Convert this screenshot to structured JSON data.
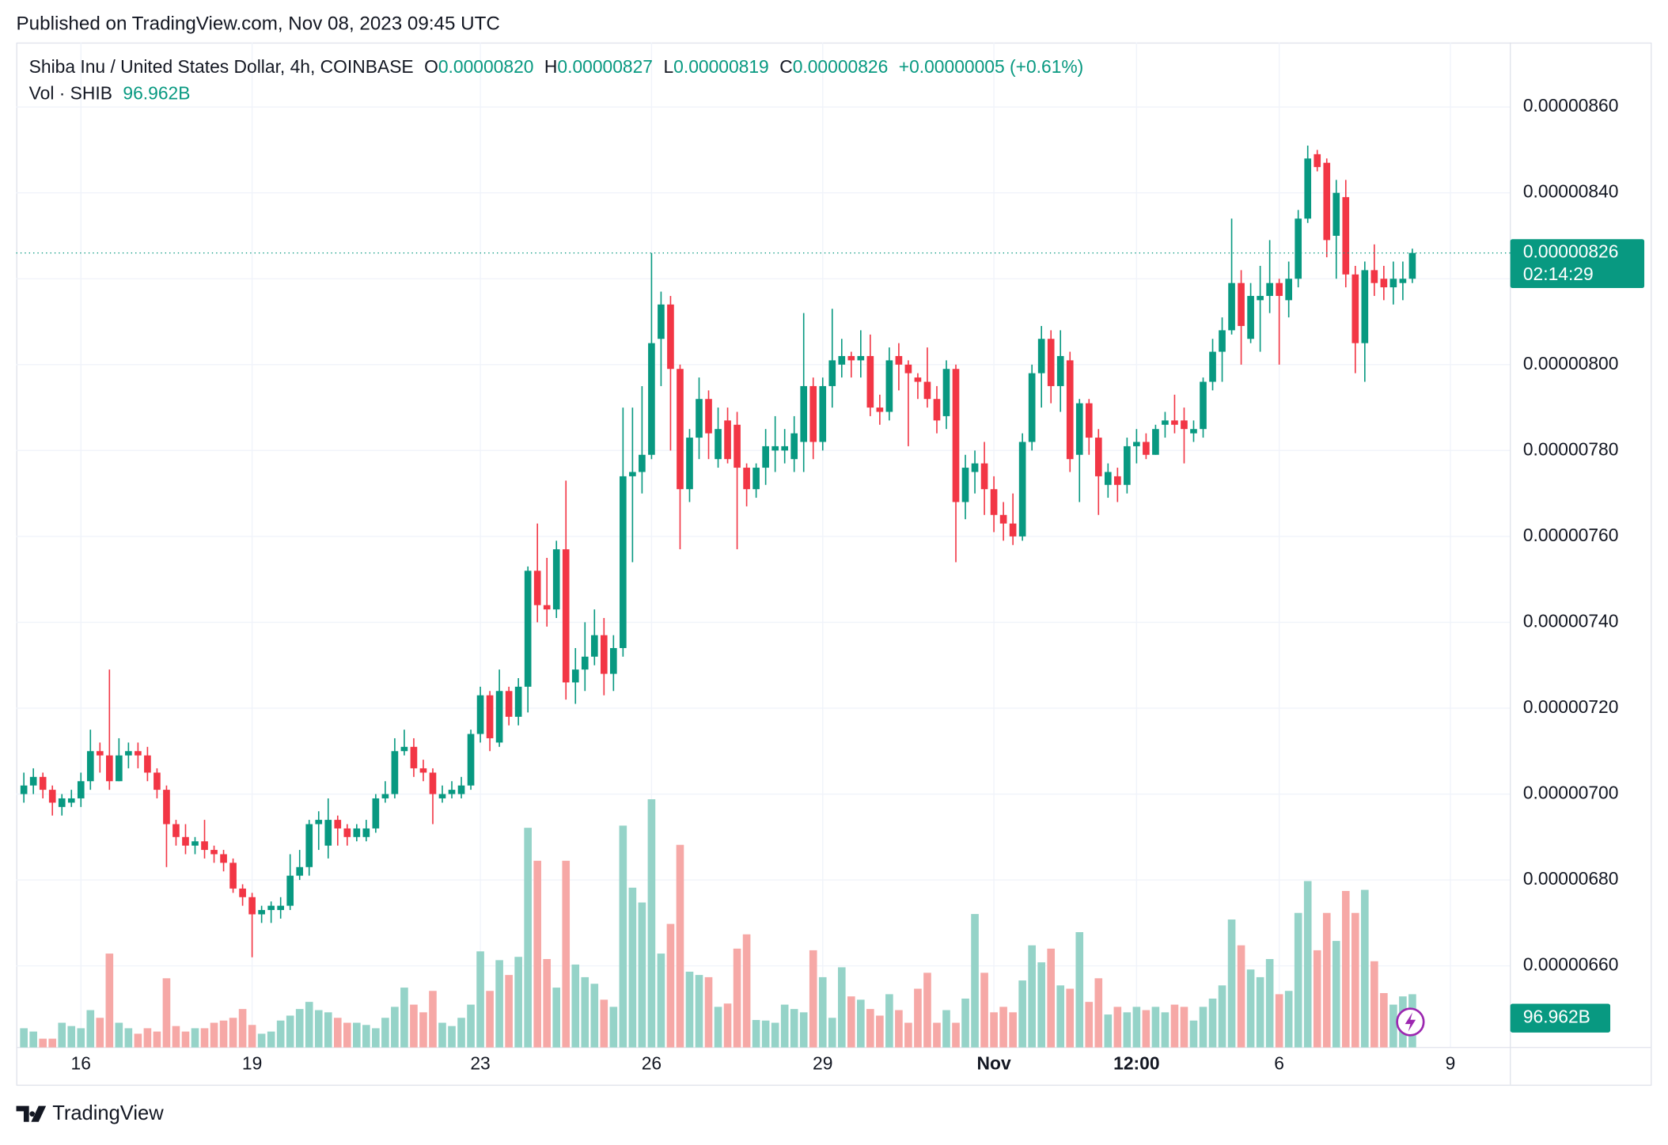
{
  "header": {
    "published": "Published on TradingView.com, Nov 08, 2023 09:45 UTC",
    "brand": "TradingView"
  },
  "chart_data": {
    "type": "candlestick",
    "title": "Shiba Inu / United States Dollar, 4h, COINBASE",
    "legend": [
      {
        "label": "O",
        "value": "0.00000820"
      },
      {
        "label": "H",
        "value": "0.00000827"
      },
      {
        "label": "L",
        "value": "0.00000819"
      },
      {
        "label": "C",
        "value": "0.00000826"
      }
    ],
    "change": "+0.00000005 (+0.61%)",
    "up_color": "#089981",
    "down_color": "#f23645",
    "up_volume_color": "#95d3c8",
    "down_volume_color": "#f6a8a6",
    "open": [
      7e-06,
      7.02e-06,
      7.04e-06,
      7.01e-06,
      6.97e-06,
      6.98e-06,
      6.99e-06,
      7.03e-06,
      7.1e-06,
      7.09e-06,
      7.03e-06,
      7.09e-06,
      7.1e-06,
      7.09e-06,
      7.05e-06,
      7.01e-06,
      6.93e-06,
      6.9e-06,
      6.88e-06,
      6.89e-06,
      6.87e-06,
      6.86e-06,
      6.84e-06,
      6.78e-06,
      6.76e-06,
      6.72e-06,
      6.73e-06,
      6.73e-06,
      6.74e-06,
      6.81e-06,
      6.83e-06,
      6.93e-06,
      6.88e-06,
      6.94e-06,
      6.92e-06,
      6.9e-06,
      6.9e-06,
      6.92e-06,
      6.99e-06,
      7e-06,
      7.1e-06,
      7.11e-06,
      7.06e-06,
      7.05e-06,
      6.99e-06,
      7e-06,
      7e-06,
      7.02e-06,
      7.14e-06,
      7.23e-06,
      7.12e-06,
      7.24e-06,
      7.18e-06,
      7.25e-06,
      7.52e-06,
      7.44e-06,
      7.43e-06,
      7.57e-06,
      7.26e-06,
      7.29e-06,
      7.32e-06,
      7.37e-06,
      7.28e-06,
      7.34e-06,
      7.74e-06,
      7.75e-06,
      7.79e-06,
      8.06e-06,
      8.14e-06,
      7.99e-06,
      7.71e-06,
      7.83e-06,
      7.92e-06,
      7.78e-06,
      7.87e-06,
      7.86e-06,
      7.76e-06,
      7.71e-06,
      7.76e-06,
      7.8e-06,
      7.8e-06,
      7.78e-06,
      7.82e-06,
      7.95e-06,
      7.82e-06,
      7.95e-06,
      8e-06,
      8.02e-06,
      8.01e-06,
      8.02e-06,
      7.9e-06,
      7.89e-06,
      8.02e-06,
      8e-06,
      7.97e-06,
      7.96e-06,
      7.92e-06,
      7.88e-06,
      7.99e-06,
      7.68e-06,
      7.75e-06,
      7.77e-06,
      7.71e-06,
      7.65e-06,
      7.63e-06,
      7.6e-06,
      7.82e-06,
      7.98e-06,
      8.06e-06,
      7.95e-06,
      8.01e-06,
      7.79e-06,
      7.91e-06,
      7.83e-06,
      7.72e-06,
      7.74e-06,
      7.72e-06,
      7.81e-06,
      7.82e-06,
      7.79e-06,
      7.86e-06,
      7.87e-06,
      7.87e-06,
      7.84e-06,
      7.85e-06,
      7.96e-06,
      8.03e-06,
      8.08e-06,
      8.19e-06,
      8.06e-06,
      8.15e-06,
      8.16e-06,
      8.19e-06,
      8.15e-06,
      8.2e-06,
      8.34e-06,
      8.49e-06,
      8.47e-06,
      8.3e-06,
      8.39e-06,
      8.21e-06,
      8.05e-06,
      8.22e-06,
      8.2e-06,
      8.18e-06,
      8.19e-06,
      8.2e-06
    ],
    "high": [
      7.05e-06,
      7.06e-06,
      7.05e-06,
      7.02e-06,
      7e-06,
      7.01e-06,
      7.05e-06,
      7.15e-06,
      7.12e-06,
      7.29e-06,
      7.13e-06,
      7.12e-06,
      7.12e-06,
      7.11e-06,
      7.06e-06,
      7.02e-06,
      6.94e-06,
      6.93e-06,
      6.9e-06,
      6.94e-06,
      6.88e-06,
      6.87e-06,
      6.85e-06,
      6.79e-06,
      6.77e-06,
      6.74e-06,
      6.75e-06,
      6.76e-06,
      6.86e-06,
      6.87e-06,
      6.94e-06,
      6.96e-06,
      6.99e-06,
      6.95e-06,
      6.93e-06,
      6.93e-06,
      6.94e-06,
      7e-06,
      7.03e-06,
      7.13e-06,
      7.15e-06,
      7.13e-06,
      7.08e-06,
      7.06e-06,
      7.02e-06,
      7.03e-06,
      7.04e-06,
      7.15e-06,
      7.25e-06,
      7.24e-06,
      7.29e-06,
      7.25e-06,
      7.27e-06,
      7.53e-06,
      7.63e-06,
      7.55e-06,
      7.59e-06,
      7.73e-06,
      7.34e-06,
      7.4e-06,
      7.43e-06,
      7.41e-06,
      7.37e-06,
      7.9e-06,
      7.9e-06,
      7.95e-06,
      8.26e-06,
      8.17e-06,
      8.16e-06,
      8e-06,
      7.85e-06,
      7.97e-06,
      7.94e-06,
      7.9e-06,
      7.9e-06,
      7.89e-06,
      7.77e-06,
      7.77e-06,
      7.85e-06,
      7.88e-06,
      7.85e-06,
      7.88e-06,
      8.12e-06,
      7.97e-06,
      7.97e-06,
      8.13e-06,
      8.06e-06,
      8.03e-06,
      8.08e-06,
      8.07e-06,
      7.93e-06,
      8.04e-06,
      8.05e-06,
      8.01e-06,
      7.98e-06,
      8.04e-06,
      7.95e-06,
      8.01e-06,
      8e-06,
      7.79e-06,
      7.8e-06,
      7.82e-06,
      7.74e-06,
      7.68e-06,
      7.7e-06,
      7.84e-06,
      8e-06,
      8.09e-06,
      8.08e-06,
      8.08e-06,
      8.03e-06,
      7.92e-06,
      7.92e-06,
      7.85e-06,
      7.77e-06,
      7.76e-06,
      7.83e-06,
      7.85e-06,
      7.84e-06,
      7.86e-06,
      7.89e-06,
      7.93e-06,
      7.9e-06,
      7.87e-06,
      7.97e-06,
      8.06e-06,
      8.11e-06,
      8.34e-06,
      8.22e-06,
      8.19e-06,
      8.23e-06,
      8.29e-06,
      8.2e-06,
      8.24e-06,
      8.36e-06,
      8.51e-06,
      8.5e-06,
      8.48e-06,
      8.43e-06,
      8.43e-06,
      8.23e-06,
      8.24e-06,
      8.28e-06,
      8.23e-06,
      8.24e-06,
      8.24e-06,
      8.27e-06
    ],
    "low": [
      6.98e-06,
      7e-06,
      6.99e-06,
      6.95e-06,
      6.95e-06,
      6.97e-06,
      6.97e-06,
      7.01e-06,
      7.05e-06,
      7.01e-06,
      7.03e-06,
      7.06e-06,
      7.06e-06,
      7.03e-06,
      6.99e-06,
      6.83e-06,
      6.88e-06,
      6.86e-06,
      6.86e-06,
      6.85e-06,
      6.84e-06,
      6.82e-06,
      6.77e-06,
      6.74e-06,
      6.62e-06,
      6.7e-06,
      6.7e-06,
      6.71e-06,
      6.73e-06,
      6.8e-06,
      6.81e-06,
      6.87e-06,
      6.85e-06,
      6.88e-06,
      6.88e-06,
      6.89e-06,
      6.89e-06,
      6.91e-06,
      6.98e-06,
      6.99e-06,
      7.09e-06,
      7.04e-06,
      7.03e-06,
      6.93e-06,
      6.98e-06,
      6.99e-06,
      6.99e-06,
      7.01e-06,
      7.12e-06,
      7.1e-06,
      7.11e-06,
      7.16e-06,
      7.16e-06,
      7.19e-06,
      7.4e-06,
      7.39e-06,
      7.41e-06,
      7.22e-06,
      7.21e-06,
      7.24e-06,
      7.3e-06,
      7.23e-06,
      7.24e-06,
      7.32e-06,
      7.54e-06,
      7.7e-06,
      7.78e-06,
      7.95e-06,
      7.8e-06,
      7.57e-06,
      7.68e-06,
      7.78e-06,
      7.78e-06,
      7.76e-06,
      7.77e-06,
      7.57e-06,
      7.67e-06,
      7.69e-06,
      7.72e-06,
      7.75e-06,
      7.77e-06,
      7.75e-06,
      7.75e-06,
      7.78e-06,
      7.8e-06,
      7.9e-06,
      7.97e-06,
      7.97e-06,
      7.97e-06,
      7.88e-06,
      7.86e-06,
      7.87e-06,
      7.94e-06,
      7.81e-06,
      7.92e-06,
      7.9e-06,
      7.84e-06,
      7.85e-06,
      7.54e-06,
      7.64e-06,
      7.7e-06,
      7.65e-06,
      7.61e-06,
      7.59e-06,
      7.58e-06,
      7.59e-06,
      7.8e-06,
      7.9e-06,
      7.91e-06,
      7.89e-06,
      7.75e-06,
      7.68e-06,
      7.79e-06,
      7.65e-06,
      7.69e-06,
      7.68e-06,
      7.7e-06,
      7.77e-06,
      7.78e-06,
      7.79e-06,
      7.83e-06,
      7.84e-06,
      7.77e-06,
      7.82e-06,
      7.83e-06,
      7.94e-06,
      7.96e-06,
      8.07e-06,
      8e-06,
      8.05e-06,
      8.03e-06,
      8.12e-06,
      8e-06,
      8.11e-06,
      8.18e-06,
      8.33e-06,
      8.45e-06,
      8.25e-06,
      8.2e-06,
      8.18e-06,
      7.98e-06,
      7.96e-06,
      8.16e-06,
      8.15e-06,
      8.14e-06,
      8.15e-06,
      8.19e-06
    ],
    "close": [
      7.02e-06,
      7.04e-06,
      7.01e-06,
      6.98e-06,
      6.99e-06,
      6.99e-06,
      7.03e-06,
      7.1e-06,
      7.09e-06,
      7.03e-06,
      7.09e-06,
      7.1e-06,
      7.09e-06,
      7.05e-06,
      7.01e-06,
      6.93e-06,
      6.9e-06,
      6.88e-06,
      6.89e-06,
      6.87e-06,
      6.86e-06,
      6.84e-06,
      6.78e-06,
      6.76e-06,
      6.72e-06,
      6.73e-06,
      6.74e-06,
      6.74e-06,
      6.81e-06,
      6.83e-06,
      6.93e-06,
      6.94e-06,
      6.94e-06,
      6.92e-06,
      6.9e-06,
      6.92e-06,
      6.92e-06,
      6.99e-06,
      7e-06,
      7.1e-06,
      7.11e-06,
      7.06e-06,
      7.05e-06,
      7e-06,
      7e-06,
      7.01e-06,
      7.02e-06,
      7.14e-06,
      7.23e-06,
      7.13e-06,
      7.24e-06,
      7.18e-06,
      7.25e-06,
      7.52e-06,
      7.44e-06,
      7.43e-06,
      7.57e-06,
      7.26e-06,
      7.29e-06,
      7.32e-06,
      7.37e-06,
      7.28e-06,
      7.34e-06,
      7.74e-06,
      7.75e-06,
      7.79e-06,
      8.05e-06,
      8.14e-06,
      7.99e-06,
      7.71e-06,
      7.83e-06,
      7.92e-06,
      7.84e-06,
      7.85e-06,
      7.78e-06,
      7.76e-06,
      7.71e-06,
      7.76e-06,
      7.81e-06,
      7.81e-06,
      7.81e-06,
      7.84e-06,
      7.95e-06,
      7.82e-06,
      7.95e-06,
      8.01e-06,
      8.02e-06,
      8.01e-06,
      8.02e-06,
      7.9e-06,
      7.89e-06,
      8.01e-06,
      8e-06,
      7.98e-06,
      7.96e-06,
      7.92e-06,
      7.87e-06,
      7.99e-06,
      7.68e-06,
      7.76e-06,
      7.77e-06,
      7.71e-06,
      7.65e-06,
      7.63e-06,
      7.6e-06,
      7.82e-06,
      7.98e-06,
      8.06e-06,
      7.95e-06,
      8.02e-06,
      7.78e-06,
      7.91e-06,
      7.83e-06,
      7.74e-06,
      7.75e-06,
      7.72e-06,
      7.81e-06,
      7.82e-06,
      7.79e-06,
      7.85e-06,
      7.87e-06,
      7.86e-06,
      7.85e-06,
      7.85e-06,
      7.96e-06,
      8.03e-06,
      8.08e-06,
      8.19e-06,
      8.09e-06,
      8.16e-06,
      8.16e-06,
      8.19e-06,
      8.16e-06,
      8.2e-06,
      8.34e-06,
      8.48e-06,
      8.46e-06,
      8.29e-06,
      8.4e-06,
      8.21e-06,
      8.05e-06,
      8.22e-06,
      8.19e-06,
      8.18e-06,
      8.2e-06,
      8.2e-06,
      8.26e-06
    ],
    "volume": {
      "name": "Vol · SHIB",
      "axis": "y2",
      "label": "96.962B",
      "values": [
        35,
        29,
        16,
        16,
        45,
        39,
        35,
        68,
        54,
        171,
        45,
        35,
        25,
        35,
        29,
        126,
        39,
        29,
        35,
        35,
        45,
        49,
        54,
        70,
        41,
        25,
        29,
        49,
        58,
        70,
        83,
        68,
        64,
        54,
        45,
        45,
        41,
        35,
        54,
        74,
        109,
        78,
        64,
        103,
        45,
        39,
        54,
        78,
        175,
        103,
        159,
        132,
        165,
        400,
        340,
        161,
        109,
        340,
        151,
        128,
        116,
        87,
        74,
        404,
        291,
        264,
        452,
        171,
        225,
        369,
        138,
        132,
        128,
        74,
        80,
        180,
        206,
        50,
        49,
        45,
        78,
        70,
        64,
        177,
        128,
        54,
        146,
        93,
        87,
        70,
        58,
        97,
        68,
        45,
        107,
        136,
        45,
        68,
        45,
        89,
        243,
        136,
        64,
        74,
        64,
        122,
        186,
        155,
        180,
        113,
        107,
        210,
        83,
        126,
        60,
        74,
        64,
        74,
        68,
        74,
        64,
        78,
        74,
        49,
        74,
        89,
        113,
        233,
        186,
        142,
        128,
        161,
        97,
        103,
        245,
        303,
        177,
        245,
        194,
        285,
        245,
        287,
        157,
        99,
        78,
        93,
        96.962
      ]
    },
    "last_price_label": "0.00000826",
    "countdown": "02:14:29",
    "xlim": [
      -0.8,
      156.3
    ],
    "xticks": [
      {
        "value": 6,
        "label": "16"
      },
      {
        "value": 24,
        "label": "19"
      },
      {
        "value": 48,
        "label": "23"
      },
      {
        "value": 66,
        "label": "26"
      },
      {
        "value": 84,
        "label": "29"
      },
      {
        "value": 102,
        "label": "Nov"
      },
      {
        "value": 117,
        "label": "12:00"
      },
      {
        "value": 132,
        "label": "6"
      },
      {
        "value": 150,
        "label": "9"
      }
    ],
    "ylim": [
      6.41e-06,
      8.75e-06
    ],
    "yticks": [
      {
        "value": 6.6e-06,
        "label": "0.00000660"
      },
      {
        "value": 6.8e-06,
        "label": "0.00000680"
      },
      {
        "value": 7e-06,
        "label": "0.00000700"
      },
      {
        "value": 7.2e-06,
        "label": "0.00000720"
      },
      {
        "value": 7.4e-06,
        "label": "0.00000740"
      },
      {
        "value": 7.6e-06,
        "label": "0.00000760"
      },
      {
        "value": 7.8e-06,
        "label": "0.00000780"
      },
      {
        "value": 8e-06,
        "label": "0.00000800"
      },
      {
        "value": 8.2e-06,
        "label": "0.00000820"
      },
      {
        "value": 8.4e-06,
        "label": "0.00000840"
      },
      {
        "value": 8.6e-06,
        "label": "0.00000860"
      }
    ],
    "y2lim": [
      0,
      1830
    ],
    "grid": true
  }
}
